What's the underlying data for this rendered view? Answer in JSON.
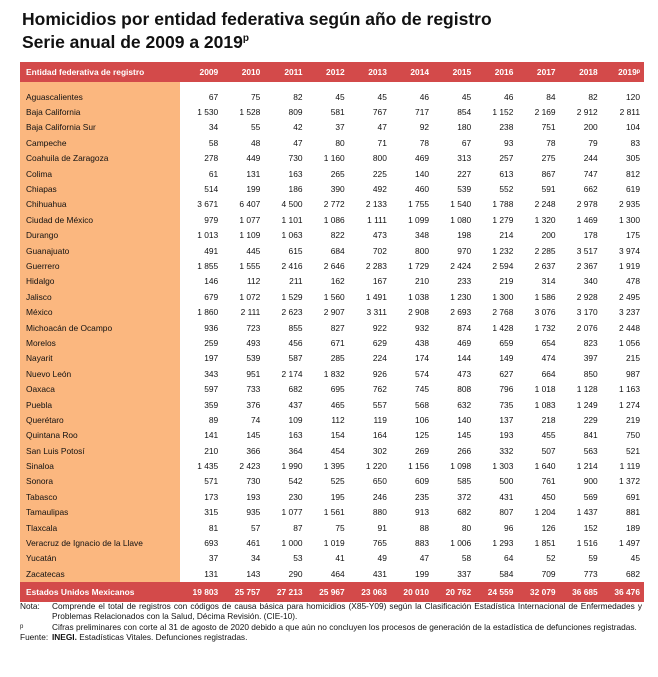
{
  "title": {
    "line1": "Homicidios por entidad federativa según año de registro",
    "line2": "Serie anual de 2009 a 2019",
    "line2_sup": "p"
  },
  "table": {
    "header_label": "Entidad federativa de registro",
    "years": [
      "2009",
      "2010",
      "2011",
      "2012",
      "2013",
      "2014",
      "2015",
      "2016",
      "2017",
      "2018",
      "2019ᵖ"
    ],
    "rows": [
      {
        "name": "Aguascalientes",
        "values": [
          "67",
          "75",
          "82",
          "45",
          "45",
          "46",
          "45",
          "46",
          "84",
          "82",
          "120"
        ]
      },
      {
        "name": "Baja California",
        "values": [
          "1 530",
          "1 528",
          "809",
          "581",
          "767",
          "717",
          "854",
          "1 152",
          "2 169",
          "2 912",
          "2 811"
        ]
      },
      {
        "name": "Baja California Sur",
        "values": [
          "34",
          "55",
          "42",
          "37",
          "47",
          "92",
          "180",
          "238",
          "751",
          "200",
          "104"
        ]
      },
      {
        "name": "Campeche",
        "values": [
          "58",
          "48",
          "47",
          "80",
          "71",
          "78",
          "67",
          "93",
          "78",
          "79",
          "83"
        ]
      },
      {
        "name": "Coahuila de Zaragoza",
        "values": [
          "278",
          "449",
          "730",
          "1 160",
          "800",
          "469",
          "313",
          "257",
          "275",
          "244",
          "305"
        ]
      },
      {
        "name": "Colima",
        "values": [
          "61",
          "131",
          "163",
          "265",
          "225",
          "140",
          "227",
          "613",
          "867",
          "747",
          "812"
        ]
      },
      {
        "name": "Chiapas",
        "values": [
          "514",
          "199",
          "186",
          "390",
          "492",
          "460",
          "539",
          "552",
          "591",
          "662",
          "619"
        ]
      },
      {
        "name": "Chihuahua",
        "values": [
          "3 671",
          "6 407",
          "4 500",
          "2 772",
          "2 133",
          "1 755",
          "1 540",
          "1 788",
          "2 248",
          "2 978",
          "2 935"
        ]
      },
      {
        "name": "Ciudad de México",
        "values": [
          "979",
          "1 077",
          "1 101",
          "1 086",
          "1 111",
          "1 099",
          "1 080",
          "1 279",
          "1 320",
          "1 469",
          "1 300"
        ]
      },
      {
        "name": "Durango",
        "values": [
          "1 013",
          "1 109",
          "1 063",
          "822",
          "473",
          "348",
          "198",
          "214",
          "200",
          "178",
          "175"
        ]
      },
      {
        "name": "Guanajuato",
        "values": [
          "491",
          "445",
          "615",
          "684",
          "702",
          "800",
          "970",
          "1 232",
          "2 285",
          "3 517",
          "3 974"
        ]
      },
      {
        "name": "Guerrero",
        "values": [
          "1 855",
          "1 555",
          "2 416",
          "2 646",
          "2 283",
          "1 729",
          "2 424",
          "2 594",
          "2 637",
          "2 367",
          "1 919"
        ]
      },
      {
        "name": "Hidalgo",
        "values": [
          "146",
          "112",
          "211",
          "162",
          "167",
          "210",
          "233",
          "219",
          "314",
          "340",
          "478"
        ]
      },
      {
        "name": "Jalisco",
        "values": [
          "679",
          "1 072",
          "1 529",
          "1 560",
          "1 491",
          "1 038",
          "1 230",
          "1 300",
          "1 586",
          "2 928",
          "2 495"
        ]
      },
      {
        "name": "México",
        "values": [
          "1 860",
          "2 111",
          "2 623",
          "2 907",
          "3 311",
          "2 908",
          "2 693",
          "2 768",
          "3 076",
          "3 170",
          "3 237"
        ]
      },
      {
        "name": "Michoacán de Ocampo",
        "values": [
          "936",
          "723",
          "855",
          "827",
          "922",
          "932",
          "874",
          "1 428",
          "1 732",
          "2 076",
          "2 448"
        ]
      },
      {
        "name": "Morelos",
        "values": [
          "259",
          "493",
          "456",
          "671",
          "629",
          "438",
          "469",
          "659",
          "654",
          "823",
          "1 056"
        ]
      },
      {
        "name": "Nayarit",
        "values": [
          "197",
          "539",
          "587",
          "285",
          "224",
          "174",
          "144",
          "149",
          "474",
          "397",
          "215"
        ]
      },
      {
        "name": "Nuevo León",
        "values": [
          "343",
          "951",
          "2 174",
          "1 832",
          "926",
          "574",
          "473",
          "627",
          "664",
          "850",
          "987"
        ]
      },
      {
        "name": "Oaxaca",
        "values": [
          "597",
          "733",
          "682",
          "695",
          "762",
          "745",
          "808",
          "796",
          "1 018",
          "1 128",
          "1 163"
        ]
      },
      {
        "name": "Puebla",
        "values": [
          "359",
          "376",
          "437",
          "465",
          "557",
          "568",
          "632",
          "735",
          "1 083",
          "1 249",
          "1 274"
        ]
      },
      {
        "name": "Querétaro",
        "values": [
          "89",
          "74",
          "109",
          "112",
          "119",
          "106",
          "140",
          "137",
          "218",
          "229",
          "219"
        ]
      },
      {
        "name": "Quintana Roo",
        "values": [
          "141",
          "145",
          "163",
          "154",
          "164",
          "125",
          "145",
          "193",
          "455",
          "841",
          "750"
        ]
      },
      {
        "name": "San Luis Potosí",
        "values": [
          "210",
          "366",
          "364",
          "454",
          "302",
          "269",
          "266",
          "332",
          "507",
          "563",
          "521"
        ]
      },
      {
        "name": "Sinaloa",
        "values": [
          "1 435",
          "2 423",
          "1 990",
          "1 395",
          "1 220",
          "1 156",
          "1 098",
          "1 303",
          "1 640",
          "1 214",
          "1 119"
        ]
      },
      {
        "name": "Sonora",
        "values": [
          "571",
          "730",
          "542",
          "525",
          "650",
          "609",
          "585",
          "500",
          "761",
          "900",
          "1 372"
        ]
      },
      {
        "name": "Tabasco",
        "values": [
          "173",
          "193",
          "230",
          "195",
          "246",
          "235",
          "372",
          "431",
          "450",
          "569",
          "691"
        ]
      },
      {
        "name": "Tamaulipas",
        "values": [
          "315",
          "935",
          "1 077",
          "1 561",
          "880",
          "913",
          "682",
          "807",
          "1 204",
          "1 437",
          "881"
        ]
      },
      {
        "name": "Tlaxcala",
        "values": [
          "81",
          "57",
          "87",
          "75",
          "91",
          "88",
          "80",
          "96",
          "126",
          "152",
          "189"
        ]
      },
      {
        "name": "Veracruz de Ignacio de la Llave",
        "values": [
          "693",
          "461",
          "1 000",
          "1 019",
          "765",
          "883",
          "1 006",
          "1 293",
          "1 851",
          "1 516",
          "1 497"
        ]
      },
      {
        "name": "Yucatán",
        "values": [
          "37",
          "34",
          "53",
          "41",
          "49",
          "47",
          "58",
          "64",
          "52",
          "59",
          "45"
        ]
      },
      {
        "name": "Zacatecas",
        "values": [
          "131",
          "143",
          "290",
          "464",
          "431",
          "199",
          "337",
          "584",
          "709",
          "773",
          "682"
        ]
      }
    ],
    "total": {
      "name": "Estados Unidos Mexicanos",
      "values": [
        "19 803",
        "25 757",
        "27 213",
        "25 967",
        "23 063",
        "20 010",
        "20 762",
        "24 559",
        "32 079",
        "36 685",
        "36 476"
      ]
    }
  },
  "notes": [
    {
      "key": "Nota:",
      "text": "Comprende el total de registros con códigos de causa básica para homicidios (X85-Y09) según la Clasificación Estadística Internacional de Enfermedades y Problemas Relacionados con la Salud, Décima Revisión. (CIE-10)."
    },
    {
      "key": "p",
      "text": "Cifras preliminares con corte al 31 de agosto de 2020 debido a que aún no concluyen los procesos de generación de la estadística de defunciones registradas."
    }
  ],
  "source": {
    "key": "Fuente:",
    "org": "INEGI.",
    "text": " Estadísticas Vitales. Defunciones registradas."
  },
  "colors": {
    "header_red": "#d34a4a",
    "label_orange": "#fbb77f"
  }
}
